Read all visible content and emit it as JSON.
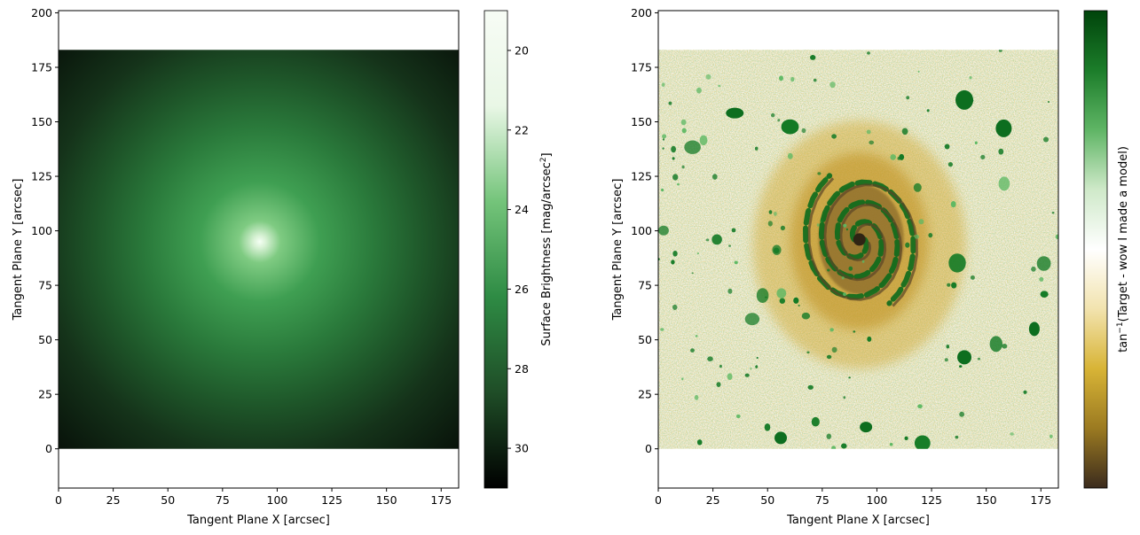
{
  "chart_data": [
    {
      "type": "heatmap",
      "title": "",
      "xlabel": "Tangent Plane X [arcsec]",
      "ylabel": "Tangent Plane Y [arcsec]",
      "xlim": [
        0,
        183
      ],
      "ylim": [
        -18,
        201
      ],
      "image_extent": {
        "x": [
          0,
          183
        ],
        "y": [
          0,
          183
        ]
      },
      "image_peak": {
        "x": 92,
        "y": 95
      },
      "xticks": [
        0,
        25,
        50,
        75,
        100,
        125,
        150,
        175
      ],
      "yticks": [
        0,
        25,
        50,
        75,
        100,
        125,
        150,
        175,
        200
      ],
      "colormap": "Greens_r",
      "colorbar": {
        "label_parts": {
          "main": "Surface Brightness [mag/arcsec",
          "sup": "2",
          "end": "]"
        },
        "range": [
          31.0,
          19.0
        ],
        "ticks": [
          20,
          22,
          24,
          26,
          28,
          30
        ],
        "inverted": true,
        "colors": [
          "#000000",
          "#1f4d27",
          "#2e8b44",
          "#74c47a",
          "#e9f7e6",
          "#f7fcf5"
        ]
      }
    },
    {
      "type": "heatmap",
      "title": "",
      "xlabel": "Tangent Plane X [arcsec]",
      "ylabel": "Tangent Plane Y [arcsec]",
      "xlim": [
        0,
        183
      ],
      "ylim": [
        -18,
        201
      ],
      "image_extent": {
        "x": [
          0,
          183
        ],
        "y": [
          0,
          183
        ]
      },
      "image_center": {
        "x": 92,
        "y": 96
      },
      "xticks": [
        0,
        25,
        50,
        75,
        100,
        125,
        150,
        175
      ],
      "yticks": [
        0,
        25,
        50,
        75,
        100,
        125,
        150,
        175,
        200
      ],
      "colormap": "diverging brown-white-green",
      "colorbar": {
        "label_parts": {
          "main": "tan",
          "sup": "−1",
          "end": "(Target - wow I made a model)"
        },
        "ticks": [],
        "colors": [
          "#3b2b1d",
          "#9b7a21",
          "#d8b436",
          "#f2e3ae",
          "#ffffff",
          "#cfe9c9",
          "#5fb565",
          "#1c7d2a",
          "#00440b"
        ]
      }
    }
  ]
}
